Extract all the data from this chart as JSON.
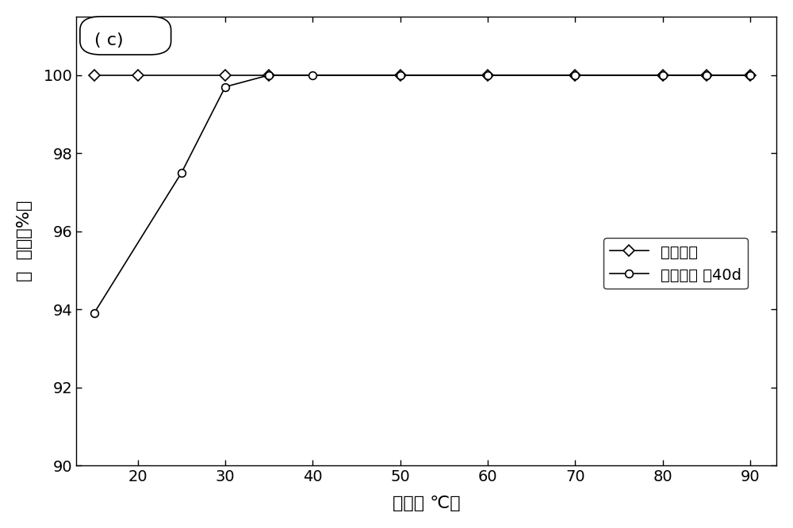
{
  "series1_label": "新鲜样品",
  "series1_x": [
    15,
    20,
    30,
    35,
    50,
    60,
    70,
    80,
    85,
    90
  ],
  "series1_y": [
    100,
    100,
    100,
    100,
    100,
    100,
    100,
    100,
    100,
    100
  ],
  "series1_marker": "D",
  "series1_markersize": 7,
  "series2_label": "干燥筱保 券40d",
  "series2_x": [
    15,
    25,
    30,
    35,
    40,
    50,
    60,
    70,
    80,
    85,
    90
  ],
  "series2_y": [
    93.9,
    97.5,
    99.7,
    100.0,
    100.0,
    100.0,
    100.0,
    100.0,
    100.0,
    100.0,
    100.0
  ],
  "series2_marker": "o",
  "series2_markersize": 7,
  "xlabel": "温度（ ℃）",
  "ylabel": "转  化率（%）",
  "xlim": [
    13,
    93
  ],
  "ylim": [
    90,
    101.5
  ],
  "xticks": [
    20,
    30,
    40,
    50,
    60,
    70,
    80,
    90
  ],
  "yticks": [
    90,
    92,
    94,
    96,
    98,
    100
  ],
  "annotation": "( c)",
  "line_color": "#000000",
  "background_color": "#ffffff"
}
